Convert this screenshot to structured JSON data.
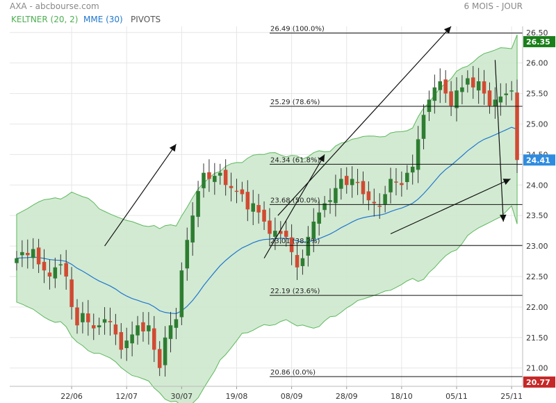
{
  "header": {
    "title": "AXA - abcbourse.com",
    "period": "6 MOIS - JOUR",
    "indicators": [
      {
        "label": "KELTNER (20, 2)",
        "color": "#4caf50"
      },
      {
        "label": "MME (30)",
        "color": "#1f77d0"
      },
      {
        "label": "PIVOTS",
        "color": "#555555"
      }
    ]
  },
  "colors": {
    "up": "#2e7d32",
    "down": "#d14a33",
    "band_fill": "#cde8cd",
    "band_line": "#5cb85c",
    "ema": "#1f77d0",
    "last_price_bg": "#1a7f1a",
    "current_price_bg": "#2f8be0",
    "low_price_bg": "#c62828"
  },
  "chart_data": {
    "type": "candlestick",
    "ylim": [
      20.7,
      26.6
    ],
    "y_ticks": [
      21.0,
      21.5,
      22.0,
      22.5,
      23.0,
      23.5,
      24.0,
      24.5,
      25.0,
      25.5,
      26.0,
      26.5
    ],
    "y_tick_labels": [
      "21.00",
      "21.50",
      "22.00",
      "22.50",
      "23.00",
      "23.50",
      "24.00",
      "24.50",
      "25.00",
      "25.50",
      "26.00",
      "26.50"
    ],
    "x_ticks": [
      {
        "label": "22/06",
        "index": 10
      },
      {
        "label": "12/07",
        "index": 20
      },
      {
        "label": "30/07",
        "index": 30
      },
      {
        "label": "19/08",
        "index": 40
      },
      {
        "label": "08/09",
        "index": 50
      },
      {
        "label": "28/09",
        "index": 60
      },
      {
        "label": "18/10",
        "index": 70
      },
      {
        "label": "05/11",
        "index": 80
      },
      {
        "label": "25/11",
        "index": 90
      }
    ],
    "closes": [
      22.8,
      22.9,
      22.85,
      22.95,
      22.7,
      22.6,
      22.5,
      22.65,
      22.7,
      22.5,
      22.0,
      21.7,
      21.9,
      21.75,
      21.65,
      21.7,
      21.8,
      21.75,
      21.55,
      21.3,
      21.45,
      21.55,
      21.7,
      21.6,
      21.7,
      21.3,
      21.0,
      21.5,
      21.7,
      21.8,
      22.6,
      23.1,
      23.5,
      23.9,
      24.2,
      24.1,
      24.15,
      24.2,
      24.0,
      23.95,
      23.9,
      23.85,
      23.6,
      23.7,
      23.55,
      23.4,
      23.2,
      23.25,
      23.2,
      23.15,
      22.9,
      22.65,
      22.8,
      23.15,
      23.4,
      23.55,
      23.7,
      23.75,
      23.95,
      24.1,
      24.0,
      24.1,
      24.05,
      23.85,
      23.75,
      23.7,
      23.65,
      23.85,
      24.1,
      24.05,
      24.0,
      24.2,
      24.3,
      24.75,
      25.15,
      25.4,
      25.6,
      25.7,
      25.5,
      25.3,
      25.55,
      25.6,
      25.75,
      25.6,
      25.7,
      25.5,
      25.3,
      25.4,
      25.45,
      25.5,
      25.55,
      24.41
    ],
    "high": 26.35,
    "low": 20.77,
    "last": 24.41,
    "indicators": [
      "KELTNER (20, 2)",
      "MME (30)"
    ],
    "fibonacci": [
      {
        "label": "26.49 (100.0%)",
        "price": 26.49
      },
      {
        "label": "25.29 (78.6%)",
        "price": 25.29
      },
      {
        "label": "24.34 (61.8%)",
        "price": 24.34
      },
      {
        "label": "23.68 (50.0%)",
        "price": 23.68
      },
      {
        "label": "23.01 (38.2%)",
        "price": 23.01
      },
      {
        "label": "22.19 (23.6%)",
        "price": 22.19
      },
      {
        "label": "20.86 (0.0%)",
        "price": 20.86
      }
    ],
    "price_labels": {
      "high": "26.35",
      "last": "24.41",
      "low": "20.77"
    }
  }
}
